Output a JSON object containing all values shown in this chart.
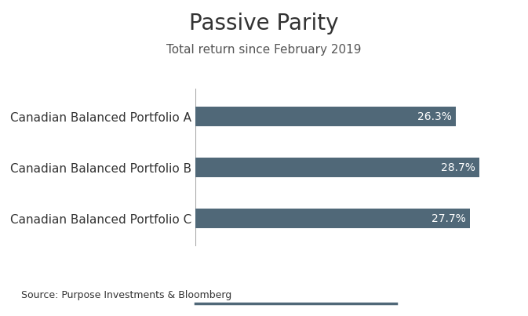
{
  "title": "Passive Parity",
  "subtitle": "Total return since February 2019",
  "categories": [
    "Canadian Balanced Portfolio A",
    "Canadian Balanced Portfolio B",
    "Canadian Balanced Portfolio C"
  ],
  "values": [
    26.3,
    28.7,
    27.7
  ],
  "labels": [
    "26.3%",
    "28.7%",
    "27.7%"
  ],
  "bar_color": "#506878",
  "bar_height": 0.38,
  "xlim": [
    0,
    32
  ],
  "source_text": "Source: Purpose Investments & Bloomberg",
  "title_fontsize": 20,
  "subtitle_fontsize": 11,
  "label_fontsize": 10,
  "ytick_fontsize": 11,
  "source_fontsize": 9,
  "background_color": "#ffffff",
  "text_color": "#333333",
  "bar_label_color": "#ffffff",
  "bottom_line_color": "#506878",
  "divider_color": "#aaaaaa"
}
